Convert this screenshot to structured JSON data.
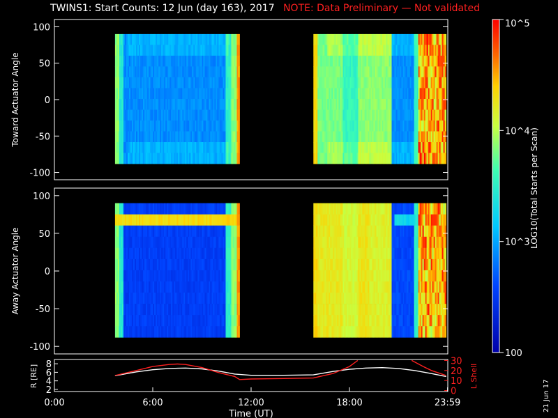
{
  "title": "TWINS1: Start Counts: 12 Jun (day 163), 2017",
  "note": "NOTE: Data Preliminary — Not validated",
  "stamp": "21 Jun 17",
  "colors": {
    "note": "#ff2020",
    "lshell": "#ff2020",
    "radius": "#ffffff",
    "background": "#000000"
  },
  "chart_data": [
    {
      "type": "heatmap",
      "ylabel": "Toward Actuator Angle",
      "xlim": [
        0,
        24
      ],
      "ylim": [
        -110,
        110
      ],
      "yticks": [
        100,
        50,
        0,
        -50,
        -100
      ],
      "data_segments": [
        {
          "start_hour": 3.7,
          "end_hour": 11.3,
          "angle_range": [
            -88,
            90
          ],
          "level": "blue to cyan, yellow-green edges"
        },
        {
          "start_hour": 15.8,
          "end_hour": 23.9,
          "angle_range": [
            -88,
            90
          ],
          "level": "green-yellow, blue center, red after 22:00"
        }
      ]
    },
    {
      "type": "heatmap",
      "ylabel": "Away Actuator Angle",
      "xlim": [
        0,
        24
      ],
      "ylim": [
        -110,
        110
      ],
      "yticks": [
        100,
        50,
        0,
        -50,
        -100
      ],
      "data_segments": [
        {
          "start_hour": 3.7,
          "end_hour": 11.3,
          "angle_range": [
            -88,
            90
          ],
          "level": "dark blue, yellow band near 70 deg"
        },
        {
          "start_hour": 15.8,
          "end_hour": 23.9,
          "angle_range": [
            -88,
            90
          ],
          "level": "yellow-orange, blue center, red after 22:00"
        }
      ]
    },
    {
      "type": "line",
      "ylabel_left": "R [RE]",
      "ylabel_right": "L Shell",
      "xlabel": "Time (UT)",
      "xlim": [
        0,
        24
      ],
      "xticks": [
        "0:00",
        "6:00",
        "12:00",
        "18:00",
        "23:59"
      ],
      "xtick_hours": [
        0,
        6,
        12,
        18,
        23.983
      ],
      "yticks_left": [
        8,
        6,
        4,
        2
      ],
      "yticks_right": [
        30,
        20,
        10,
        0
      ],
      "series": [
        {
          "axis": "left",
          "color": "#ffffff",
          "x": [
            3.7,
            5,
            6,
            7,
            8,
            9,
            10,
            11,
            12,
            14,
            15.8,
            17,
            18,
            19,
            20,
            21,
            22,
            23,
            23.9
          ],
          "y": [
            5.2,
            6.1,
            6.6,
            6.9,
            7.0,
            6.8,
            6.3,
            5.6,
            5.3,
            5.3,
            5.4,
            6.2,
            6.7,
            7.0,
            7.1,
            6.9,
            6.4,
            5.7,
            5.0
          ]
        },
        {
          "axis": "right",
          "color": "#ff2020",
          "x": [
            3.7,
            5,
            6,
            7,
            7.5,
            8,
            9,
            10,
            11,
            11.3,
            12,
            14,
            15.8,
            17,
            18,
            18.5
          ],
          "y": [
            15,
            20,
            24,
            26,
            26.5,
            26,
            23,
            18,
            14,
            11,
            11.5,
            12,
            12.5,
            17,
            24,
            30
          ]
        },
        {
          "axis": "right",
          "color": "#ff2020",
          "x": [
            21.8,
            22.5,
            23,
            23.9
          ],
          "y": [
            30,
            24,
            20,
            15
          ]
        }
      ]
    },
    {
      "type": "colorbar",
      "label": "LOG10(Total Starts per Scan)",
      "scale": "log",
      "range": [
        100,
        100000
      ],
      "tick_labels": [
        "10^5",
        "10^4",
        "10^3",
        "100"
      ]
    }
  ]
}
